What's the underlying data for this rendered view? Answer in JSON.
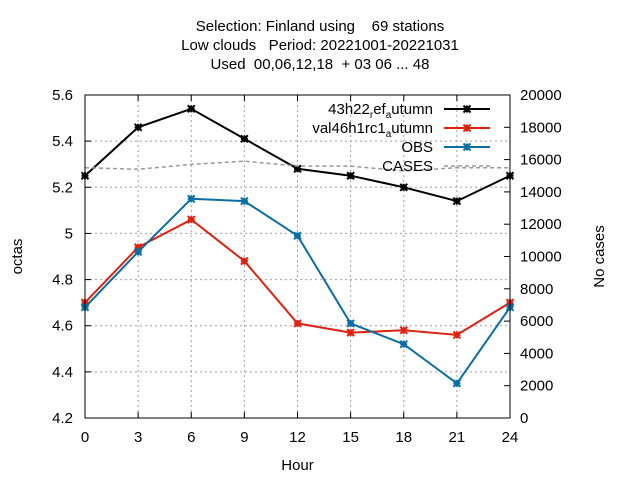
{
  "chart_data": {
    "type": "line",
    "title_lines": [
      "Selection: Finland using    69 stations",
      "Low clouds   Period: 20221001-20221031",
      "Used  00,06,12,18  + 03 06 ... 48"
    ],
    "xlabel": "Hour",
    "ylabel": "octas",
    "y2label": "No cases",
    "x": [
      0,
      3,
      6,
      9,
      12,
      15,
      18,
      21,
      24
    ],
    "xlim": [
      0,
      24
    ],
    "ylim": [
      4.2,
      5.6
    ],
    "y2lim": [
      0,
      20000
    ],
    "x_ticks": [
      "0",
      "3",
      "6",
      "9",
      "12",
      "15",
      "18",
      "21",
      "24"
    ],
    "y_ticks": [
      "4.2",
      "4.4",
      "4.6",
      "4.8",
      "5",
      "5.2",
      "5.4",
      "5.6"
    ],
    "y2_ticks": [
      "0",
      "2000",
      "4000",
      "6000",
      "8000",
      "10000",
      "12000",
      "14000",
      "16000",
      "18000",
      "20000"
    ],
    "grid": true,
    "legend_position": "top-right",
    "series": [
      {
        "name_main": "43h22",
        "name_parts": [
          {
            "text": "43h22",
            "shift": "none"
          },
          {
            "text": "r",
            "shift": "sub"
          },
          {
            "text": "ef",
            "shift": "none"
          },
          {
            "text": "a",
            "shift": "sub"
          },
          {
            "text": "utumn",
            "shift": "none"
          }
        ],
        "color": "#000000",
        "axis": "y",
        "style": "solid",
        "values": [
          5.25,
          5.46,
          5.54,
          5.41,
          5.28,
          5.25,
          5.2,
          5.14,
          5.25
        ]
      },
      {
        "name_parts": [
          {
            "text": "val46h1rc1",
            "shift": "none"
          },
          {
            "text": "a",
            "shift": "sub"
          },
          {
            "text": "utumn",
            "shift": "none"
          }
        ],
        "color": "#dd2211",
        "axis": "y",
        "style": "solid",
        "values": [
          4.7,
          4.94,
          5.06,
          4.88,
          4.61,
          4.57,
          4.58,
          4.56,
          4.7
        ]
      },
      {
        "name_parts": [
          {
            "text": "OBS",
            "shift": "none"
          }
        ],
        "color": "#0a6ea3",
        "axis": "y",
        "style": "solid",
        "values": [
          4.68,
          4.92,
          5.15,
          5.14,
          4.99,
          4.61,
          4.52,
          4.35,
          4.68
        ]
      },
      {
        "name_parts": [
          {
            "text": "CASES",
            "shift": "none"
          }
        ],
        "color": "#999999",
        "axis": "y2",
        "style": "dashed",
        "values": [
          15500,
          15400,
          15700,
          15900,
          15600,
          15600,
          15300,
          15500,
          15500
        ]
      }
    ]
  }
}
